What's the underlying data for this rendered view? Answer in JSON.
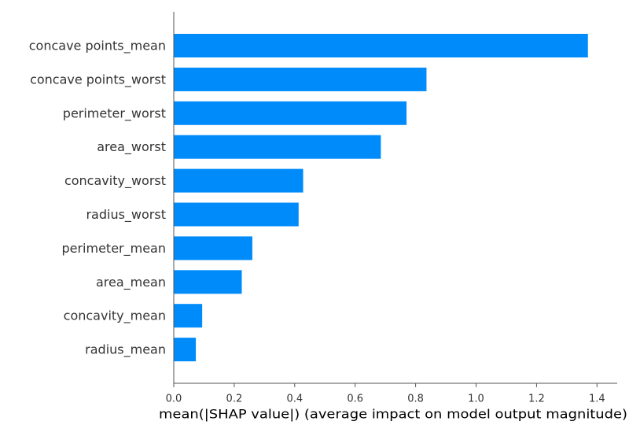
{
  "chart_data": {
    "type": "bar",
    "orientation": "horizontal",
    "categories": [
      "concave points_mean",
      "concave points_worst",
      "perimeter_worst",
      "area_worst",
      "concavity_worst",
      "radius_worst",
      "perimeter_mean",
      "area_mean",
      "concavity_mean",
      "radius_mean"
    ],
    "values": [
      1.37,
      0.836,
      0.77,
      0.685,
      0.428,
      0.413,
      0.26,
      0.225,
      0.094,
      0.073
    ],
    "title": "",
    "xlabel": "mean(|SHAP value|) (average impact on model output magnitude)",
    "ylabel": "",
    "xlim": [
      0,
      1.4
    ],
    "xticks": [
      "0.0",
      "0.2",
      "0.4",
      "0.6",
      "0.8",
      "1.0",
      "1.2",
      "1.4"
    ],
    "bar_color": "#008bfb",
    "grid": false,
    "legend": "none"
  }
}
